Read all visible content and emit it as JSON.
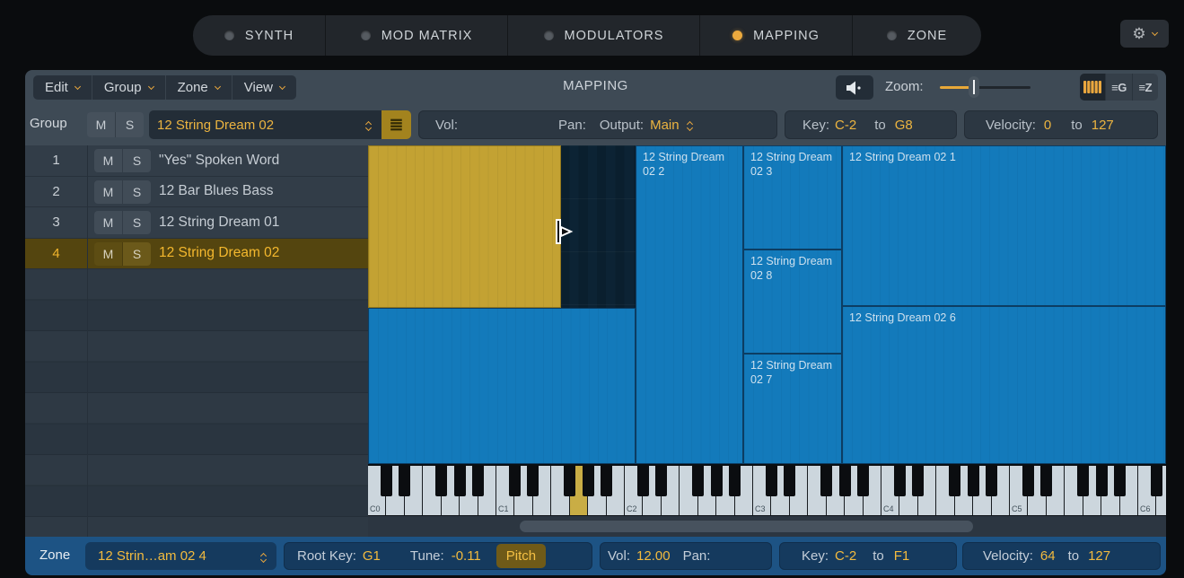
{
  "colors": {
    "accent": "#ecb440",
    "zone_blue": "#137abb",
    "zone_selected_yellow": "#c3a233",
    "bottom_bar_blue": "#1d5384",
    "window_gray": "#3e4a55"
  },
  "icons": {
    "gear": "⚙",
    "list_button": "≣",
    "group_view": "≡G",
    "zone_view": "≡Z"
  },
  "top_tabs": [
    {
      "label": "SYNTH",
      "active": false
    },
    {
      "label": "MOD MATRIX",
      "active": false
    },
    {
      "label": "MODULATORS",
      "active": false
    },
    {
      "label": "MAPPING",
      "active": true
    },
    {
      "label": "ZONE",
      "active": false
    }
  ],
  "toolbar": {
    "menus": [
      {
        "label": "Edit"
      },
      {
        "label": "Group"
      },
      {
        "label": "Zone"
      },
      {
        "label": "View"
      }
    ],
    "title": "MAPPING",
    "zoom_label": "Zoom:"
  },
  "group_header": {
    "label": "Group",
    "mute": "M",
    "solo": "S",
    "name": "12 String Dream 02",
    "vol_label": "Vol:",
    "pan_label": "Pan:",
    "output_label": "Output:",
    "output_value": "Main",
    "key_label": "Key:",
    "key_low": "C-2",
    "to": "to",
    "key_high": "G8",
    "velocity_label": "Velocity:",
    "vel_low": "0",
    "vel_high": "127"
  },
  "group_list": [
    {
      "num": "1",
      "mute": "M",
      "solo": "S",
      "name": "\"Yes\" Spoken Word",
      "selected": false
    },
    {
      "num": "2",
      "mute": "M",
      "solo": "S",
      "name": "12 Bar Blues Bass",
      "selected": false
    },
    {
      "num": "3",
      "mute": "M",
      "solo": "S",
      "name": "12 String Dream 01",
      "selected": false
    },
    {
      "num": "4",
      "mute": "M",
      "solo": "S",
      "name": "12 String Dream 02",
      "selected": true
    }
  ],
  "zones": [
    {
      "label": "12 String Dream 02 2"
    },
    {
      "label": "12 String Dream 02 3"
    },
    {
      "label": "12 String Dream 02 8"
    },
    {
      "label": "12 String Dream 02 7"
    },
    {
      "label": "12 String Dream 02 1"
    },
    {
      "label": "12 String Dream 02 6"
    }
  ],
  "keyboard": {
    "octave_labels": [
      "C0",
      "C1",
      "C2",
      "C3",
      "C4",
      "C5",
      "C6"
    ],
    "root_key": "G1"
  },
  "zone_footer": {
    "zone_label": "Zone",
    "zone_name": "12 Strin…am 02 4",
    "root_key_label": "Root Key:",
    "root_key": "G1",
    "tune_label": "Tune:",
    "tune": "-0.11",
    "pitch_button": "Pitch",
    "vol_label": "Vol:",
    "vol": "12.00",
    "pan_label": "Pan:",
    "key_label": "Key:",
    "key_low": "C-2",
    "to": "to",
    "key_high": "F1",
    "velocity_label": "Velocity:",
    "vel_low": "64",
    "vel_high": "127"
  }
}
